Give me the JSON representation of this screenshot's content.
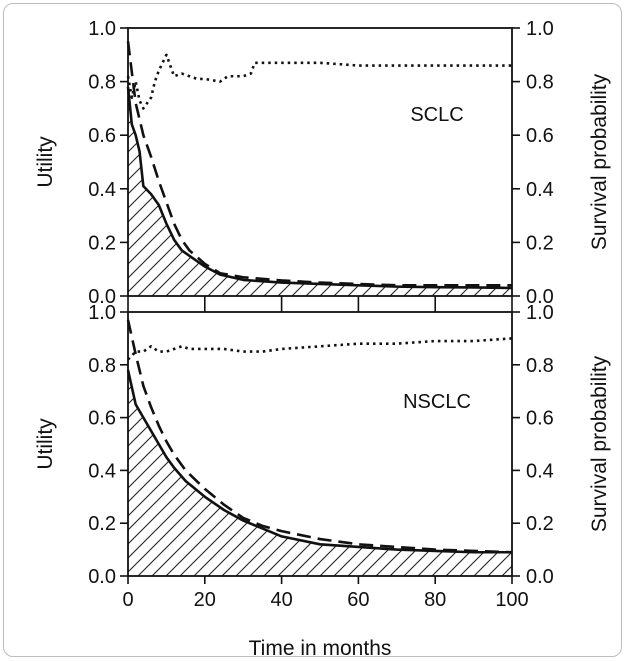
{
  "chart_data": [
    {
      "type": "line",
      "panel_label": "SCLC",
      "ylabel_left": "Utility",
      "ylabel_right": "Survival probability",
      "xlim": [
        0,
        100
      ],
      "ylim": [
        0,
        1
      ],
      "y_ticks": [
        "0.0",
        "0.2",
        "0.4",
        "0.6",
        "0.8",
        "1.0"
      ],
      "y_ticks_right": [
        "0.0",
        "0.2",
        "0.4",
        "0.6",
        "0.8",
        "1.0"
      ],
      "series": [
        {
          "style": "solid",
          "shaded_area": true,
          "x": [
            0,
            1,
            2,
            3,
            4,
            6,
            8,
            10,
            12,
            14,
            16,
            20,
            24,
            30,
            40,
            50,
            60,
            70,
            80,
            90,
            100
          ],
          "y": [
            0.78,
            0.64,
            0.6,
            0.54,
            0.41,
            0.38,
            0.34,
            0.27,
            0.21,
            0.17,
            0.15,
            0.11,
            0.08,
            0.06,
            0.05,
            0.045,
            0.04,
            0.035,
            0.033,
            0.032,
            0.03
          ]
        },
        {
          "style": "dashed",
          "x": [
            0,
            2,
            4,
            6,
            8,
            10,
            12,
            14,
            16,
            20,
            24,
            30,
            40,
            50,
            60,
            70,
            80,
            90,
            100
          ],
          "y": [
            0.95,
            0.72,
            0.6,
            0.52,
            0.43,
            0.35,
            0.27,
            0.21,
            0.17,
            0.12,
            0.085,
            0.07,
            0.058,
            0.05,
            0.045,
            0.04,
            0.04,
            0.04,
            0.04
          ]
        },
        {
          "style": "dotted",
          "x": [
            0,
            1,
            2,
            3,
            4,
            5,
            6,
            7,
            8,
            10,
            12,
            14,
            16,
            18,
            20,
            24,
            26,
            28,
            30,
            32,
            33,
            34,
            40,
            50,
            60,
            70,
            80,
            90,
            100
          ],
          "y": [
            0.82,
            0.74,
            0.8,
            0.73,
            0.7,
            0.72,
            0.74,
            0.8,
            0.84,
            0.9,
            0.82,
            0.83,
            0.82,
            0.81,
            0.81,
            0.8,
            0.82,
            0.82,
            0.82,
            0.83,
            0.87,
            0.87,
            0.87,
            0.87,
            0.86,
            0.86,
            0.86,
            0.86,
            0.86
          ]
        }
      ]
    },
    {
      "type": "line",
      "panel_label": "NSCLC",
      "ylabel_left": "Utility",
      "ylabel_right": "Survival probability",
      "xlabel": "Time in months",
      "xlim": [
        0,
        100
      ],
      "ylim": [
        0,
        1
      ],
      "x_ticks": [
        "0",
        "20",
        "40",
        "60",
        "80",
        "100"
      ],
      "y_ticks": [
        "0.0",
        "0.2",
        "0.4",
        "0.6",
        "0.8",
        "1.0"
      ],
      "y_ticks_right": [
        "0.0",
        "0.2",
        "0.4",
        "0.6",
        "0.8",
        "1.0"
      ],
      "series": [
        {
          "style": "solid",
          "shaded_area": true,
          "x": [
            0,
            2,
            4,
            6,
            8,
            10,
            12,
            15,
            20,
            25,
            30,
            35,
            40,
            50,
            60,
            70,
            80,
            90,
            100
          ],
          "y": [
            0.78,
            0.65,
            0.6,
            0.55,
            0.5,
            0.45,
            0.41,
            0.36,
            0.3,
            0.25,
            0.21,
            0.18,
            0.15,
            0.12,
            0.11,
            0.1,
            0.095,
            0.09,
            0.09
          ]
        },
        {
          "style": "dashed",
          "x": [
            0,
            2,
            4,
            6,
            8,
            10,
            12,
            15,
            20,
            25,
            30,
            35,
            40,
            50,
            60,
            70,
            80,
            90,
            100
          ],
          "y": [
            0.97,
            0.84,
            0.72,
            0.64,
            0.57,
            0.51,
            0.46,
            0.4,
            0.33,
            0.27,
            0.22,
            0.19,
            0.17,
            0.14,
            0.12,
            0.11,
            0.1,
            0.095,
            0.09
          ]
        },
        {
          "style": "dotted",
          "x": [
            0,
            2,
            4,
            6,
            8,
            10,
            12,
            14,
            16,
            18,
            20,
            25,
            30,
            35,
            40,
            50,
            60,
            70,
            80,
            90,
            100
          ],
          "y": [
            0.82,
            0.85,
            0.85,
            0.87,
            0.85,
            0.85,
            0.86,
            0.87,
            0.86,
            0.86,
            0.86,
            0.86,
            0.85,
            0.85,
            0.86,
            0.87,
            0.88,
            0.88,
            0.89,
            0.89,
            0.9
          ]
        }
      ]
    }
  ]
}
